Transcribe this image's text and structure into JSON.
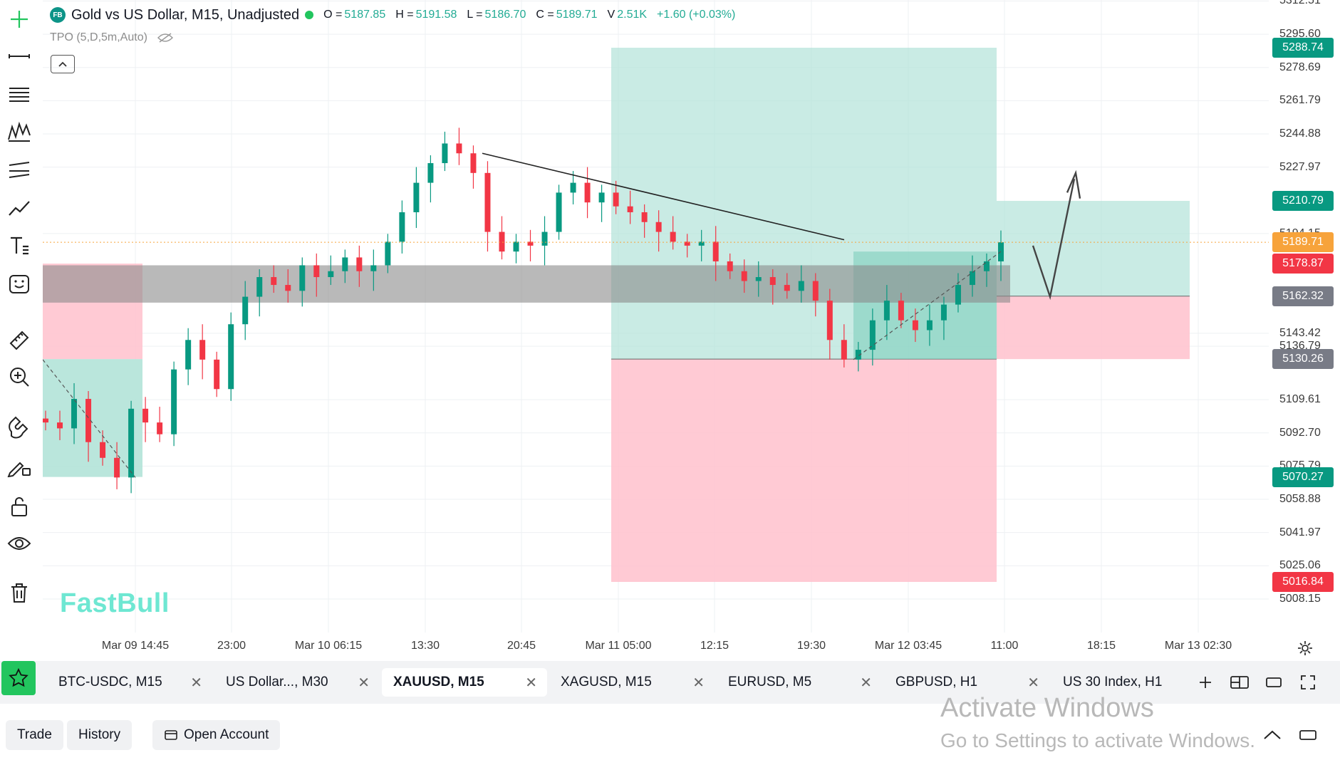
{
  "legend": {
    "logo": "FB",
    "symbol": "Gold vs US Dollar, M15, Unadjusted",
    "open_label": "O =",
    "open": "5187.85",
    "high_label": "H =",
    "high": "5191.58",
    "low_label": "L =",
    "low": "5186.70",
    "close_label": "C =",
    "close": "5189.71",
    "volume_label": "V",
    "volume": "2.51K",
    "change": "+1.60 (+0.03%)"
  },
  "indicator": {
    "name": "TPO (5,D,5m,Auto)"
  },
  "brand": "FastBull",
  "price_axis": {
    "ticks": [
      "5312.51",
      "5295.60",
      "5278.69",
      "5261.79",
      "5244.88",
      "5227.97",
      "5194.15",
      "5143.42",
      "5136.79",
      "5109.61",
      "5092.70",
      "5075.79",
      "5058.88",
      "5041.97",
      "5025.06",
      "5008.15"
    ],
    "labels": [
      {
        "text": "5288.74",
        "color": "#089981"
      },
      {
        "text": "5210.79",
        "color": "#089981"
      },
      {
        "text": "5189.71",
        "color": "#f7a33b"
      },
      {
        "text": "5178.87",
        "color": "#f23645"
      },
      {
        "text": "5162.32",
        "color": "#787b86"
      },
      {
        "text": "5130.26",
        "color": "#787b86"
      },
      {
        "text": "5070.27",
        "color": "#089981"
      },
      {
        "text": "5016.84",
        "color": "#f23645"
      }
    ]
  },
  "time_axis": [
    "Mar 09 14:45",
    "23:00",
    "Mar 10 06:15",
    "13:30",
    "20:45",
    "Mar 11 05:00",
    "12:15",
    "19:30",
    "Mar 12 03:45",
    "11:00",
    "18:15",
    "Mar 13 02:30"
  ],
  "chart_data": {
    "type": "candlestick",
    "title": "Gold vs US Dollar, M15, Unadjusted",
    "x_ticks": [
      "Mar 09 14:45",
      "23:00",
      "Mar 10 06:15",
      "13:30",
      "20:45",
      "Mar 11 05:00",
      "12:15",
      "19:30",
      "Mar 12 03:45",
      "11:00",
      "18:15",
      "Mar 13 02:30"
    ],
    "ylim": [
      5000,
      5315
    ],
    "last_close": 5189.71,
    "approx_closes": [
      5098,
      5095,
      5110,
      5088,
      5080,
      5070,
      5105,
      5098,
      5092,
      5125,
      5140,
      5130,
      5115,
      5148,
      5162,
      5172,
      5168,
      5165,
      5178,
      5172,
      5175,
      5182,
      5175,
      5178,
      5190,
      5205,
      5220,
      5230,
      5240,
      5235,
      5225,
      5195,
      5185,
      5190,
      5188,
      5195,
      5215,
      5220,
      5210,
      5215,
      5208,
      5205,
      5200,
      5195,
      5190,
      5188,
      5190,
      5180,
      5175,
      5170,
      5172,
      5168,
      5165,
      5170,
      5160,
      5140,
      5130,
      5135,
      5150,
      5160,
      5150,
      5145,
      5150,
      5158,
      5168,
      5175,
      5180,
      5189.71
    ],
    "positions": [
      {
        "kind": "long",
        "entry": 5130.26,
        "target": 5288.74,
        "stop": 5016.84
      },
      {
        "kind": "long",
        "entry": 5162.32,
        "target": 5210.79,
        "stop": 5130.26
      }
    ],
    "zones": [
      {
        "kind": "range",
        "from": 5159,
        "to": 5178
      }
    ]
  },
  "tabs": [
    {
      "label": "BTC-USDC, M15",
      "active": false
    },
    {
      "label": "US Dollar..., M30",
      "active": false
    },
    {
      "label": "XAUUSD, M15",
      "active": true
    },
    {
      "label": "XAGUSD, M15",
      "active": false
    },
    {
      "label": "EURUSD, M5",
      "active": false
    },
    {
      "label": "GBPUSD, H1",
      "active": false
    },
    {
      "label": "US 30 Index, H1",
      "active": false
    }
  ],
  "tab_close_glyph": "✕",
  "bottom": {
    "trade": "Trade",
    "history": "History",
    "open_account": "Open Account"
  },
  "watermark": {
    "line1": "Activate Windows",
    "line2": "Go to Settings to activate Windows."
  },
  "colors": {
    "up": "#089981",
    "down": "#f23645",
    "profit_zone": "#b2e3d8",
    "loss_zone": "#ffc1cc"
  }
}
